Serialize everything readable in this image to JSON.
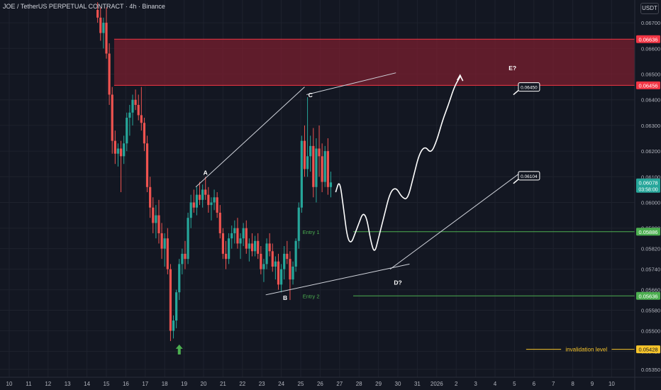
{
  "header": {
    "symbol_text": "JOE / TetherUS PERPETUAL CONTRACT · 4h · Binance"
  },
  "currency_label": "USDT",
  "colors": {
    "background": "#131722",
    "up_candle": "#26a69a",
    "down_candle": "#ef5350",
    "zone_fill": "#7a1f2f",
    "zone_border": "#f23645",
    "entry_line": "#4caf50",
    "invalidation_line": "#f7c52b",
    "last_price": "#26a69a",
    "arrow_up": "#4caf50"
  },
  "chart_data": {
    "type": "candlestick",
    "title": "JOE / TetherUS PERPETUAL CONTRACT · 4h · Binance",
    "y_axis_ticks": [
      "0.06700",
      "0.06600",
      "0.06500",
      "0.06400",
      "0.06300",
      "0.06200",
      "0.06100",
      "0.06000",
      "0.05900",
      "0.05820",
      "0.05740",
      "0.05660",
      "0.05580",
      "0.05500",
      "0.05420",
      "0.05350"
    ],
    "x_axis_ticks": [
      "10",
      "11",
      "12",
      "13",
      "14",
      "15",
      "16",
      "17",
      "18",
      "19",
      "20",
      "21",
      "22",
      "23",
      "24",
      "25",
      "26",
      "27",
      "28",
      "29",
      "30",
      "31",
      "2026",
      "2",
      "3",
      "4",
      "5",
      "6",
      "7",
      "8",
      "9",
      "10"
    ],
    "ylim": [
      0.0532,
      0.0675
    ],
    "grid": true,
    "price_labels": [
      {
        "text": "0.06636",
        "price": 0.06636,
        "style": "red"
      },
      {
        "text": "0.06456",
        "price": 0.06456,
        "style": "red"
      },
      {
        "text": "0.06078",
        "price": 0.06078,
        "style": "teal",
        "sub": "03:58:00"
      },
      {
        "text": "0.05886",
        "price": 0.05886,
        "style": "green"
      },
      {
        "text": "0.05636",
        "price": 0.05636,
        "style": "green"
      },
      {
        "text": "0.05428",
        "price": 0.05428,
        "style": "yellow"
      }
    ],
    "resistance_zone": {
      "top": 0.06636,
      "bottom": 0.06456
    },
    "entries": [
      {
        "label": "Entry 1",
        "price": 0.05886
      },
      {
        "label": "Entry 2",
        "price": 0.05636
      }
    ],
    "invalidation": {
      "label": "invalidation level",
      "price": 0.05428
    },
    "wave_labels": [
      {
        "label": "A",
        "day": 20.1,
        "price": 0.06108
      },
      {
        "label": "B",
        "day": 24.2,
        "price": 0.0562
      },
      {
        "label": "C",
        "day": 25.5,
        "price": 0.0641
      },
      {
        "label": "D?",
        "day": 30.0,
        "price": 0.0568
      },
      {
        "label": "E?",
        "day": 35.9,
        "price": 0.06515
      }
    ],
    "callouts": [
      {
        "text": "0.06450",
        "price": 0.0645
      },
      {
        "text": "0.06104",
        "price": 0.06104
      }
    ],
    "candles": [
      {
        "d": 14.55,
        "o": 0.0675,
        "h": 0.0678,
        "l": 0.067,
        "c": 0.0672
      },
      {
        "d": 14.7,
        "o": 0.0672,
        "h": 0.0676,
        "l": 0.0663,
        "c": 0.0666
      },
      {
        "d": 14.85,
        "o": 0.0666,
        "h": 0.0672,
        "l": 0.066,
        "c": 0.067
      },
      {
        "d": 15.0,
        "o": 0.067,
        "h": 0.0676,
        "l": 0.0656,
        "c": 0.0658
      },
      {
        "d": 15.15,
        "o": 0.0658,
        "h": 0.0662,
        "l": 0.0638,
        "c": 0.0642
      },
      {
        "d": 15.3,
        "o": 0.0642,
        "h": 0.0645,
        "l": 0.0619,
        "c": 0.0624
      },
      {
        "d": 15.45,
        "o": 0.0624,
        "h": 0.0628,
        "l": 0.0615,
        "c": 0.0619
      },
      {
        "d": 15.6,
        "o": 0.0619,
        "h": 0.0623,
        "l": 0.0614,
        "c": 0.0621
      },
      {
        "d": 15.75,
        "o": 0.0621,
        "h": 0.0624,
        "l": 0.0604,
        "c": 0.0618
      },
      {
        "d": 15.9,
        "o": 0.0618,
        "h": 0.0626,
        "l": 0.0615,
        "c": 0.0623
      },
      {
        "d": 16.05,
        "o": 0.0623,
        "h": 0.0635,
        "l": 0.062,
        "c": 0.0633
      },
      {
        "d": 16.2,
        "o": 0.0633,
        "h": 0.0638,
        "l": 0.0626,
        "c": 0.0635
      },
      {
        "d": 16.35,
        "o": 0.0635,
        "h": 0.0642,
        "l": 0.063,
        "c": 0.064
      },
      {
        "d": 16.5,
        "o": 0.064,
        "h": 0.0644,
        "l": 0.0636,
        "c": 0.0638
      },
      {
        "d": 16.65,
        "o": 0.0638,
        "h": 0.0642,
        "l": 0.0632,
        "c": 0.0634
      },
      {
        "d": 16.8,
        "o": 0.0634,
        "h": 0.0645,
        "l": 0.0628,
        "c": 0.0631
      },
      {
        "d": 16.95,
        "o": 0.0631,
        "h": 0.0633,
        "l": 0.062,
        "c": 0.0623
      },
      {
        "d": 17.1,
        "o": 0.0623,
        "h": 0.0626,
        "l": 0.0604,
        "c": 0.0606
      },
      {
        "d": 17.25,
        "o": 0.0606,
        "h": 0.061,
        "l": 0.0594,
        "c": 0.0598
      },
      {
        "d": 17.4,
        "o": 0.0598,
        "h": 0.0602,
        "l": 0.0588,
        "c": 0.0592
      },
      {
        "d": 17.55,
        "o": 0.0592,
        "h": 0.0599,
        "l": 0.0586,
        "c": 0.0595
      },
      {
        "d": 17.7,
        "o": 0.0595,
        "h": 0.0601,
        "l": 0.0584,
        "c": 0.0588
      },
      {
        "d": 17.85,
        "o": 0.0588,
        "h": 0.0592,
        "l": 0.0578,
        "c": 0.0582
      },
      {
        "d": 18.0,
        "o": 0.0582,
        "h": 0.0588,
        "l": 0.0575,
        "c": 0.0586
      },
      {
        "d": 18.15,
        "o": 0.0586,
        "h": 0.059,
        "l": 0.0572,
        "c": 0.0574
      },
      {
        "d": 18.3,
        "o": 0.0574,
        "h": 0.0576,
        "l": 0.0546,
        "c": 0.055
      },
      {
        "d": 18.45,
        "o": 0.055,
        "h": 0.0556,
        "l": 0.0547,
        "c": 0.0554
      },
      {
        "d": 18.6,
        "o": 0.0554,
        "h": 0.0566,
        "l": 0.0551,
        "c": 0.0565
      },
      {
        "d": 18.75,
        "o": 0.0565,
        "h": 0.0578,
        "l": 0.0562,
        "c": 0.0576
      },
      {
        "d": 18.9,
        "o": 0.0576,
        "h": 0.0582,
        "l": 0.0572,
        "c": 0.058
      },
      {
        "d": 19.05,
        "o": 0.058,
        "h": 0.0585,
        "l": 0.0574,
        "c": 0.0578
      },
      {
        "d": 19.2,
        "o": 0.0578,
        "h": 0.0596,
        "l": 0.0576,
        "c": 0.0594
      },
      {
        "d": 19.35,
        "o": 0.0594,
        "h": 0.0603,
        "l": 0.059,
        "c": 0.06
      },
      {
        "d": 19.5,
        "o": 0.06,
        "h": 0.0605,
        "l": 0.0596,
        "c": 0.0598
      },
      {
        "d": 19.65,
        "o": 0.0598,
        "h": 0.0606,
        "l": 0.0595,
        "c": 0.0603
      },
      {
        "d": 19.8,
        "o": 0.0603,
        "h": 0.0608,
        "l": 0.0599,
        "c": 0.0601
      },
      {
        "d": 19.95,
        "o": 0.0601,
        "h": 0.0607,
        "l": 0.0598,
        "c": 0.0605
      },
      {
        "d": 20.1,
        "o": 0.0605,
        "h": 0.061,
        "l": 0.0601,
        "c": 0.0603
      },
      {
        "d": 20.25,
        "o": 0.0603,
        "h": 0.0606,
        "l": 0.0596,
        "c": 0.0599
      },
      {
        "d": 20.4,
        "o": 0.0599,
        "h": 0.0602,
        "l": 0.0593,
        "c": 0.06
      },
      {
        "d": 20.55,
        "o": 0.06,
        "h": 0.0605,
        "l": 0.0597,
        "c": 0.0602
      },
      {
        "d": 20.7,
        "o": 0.0602,
        "h": 0.0604,
        "l": 0.0594,
        "c": 0.0596
      },
      {
        "d": 20.85,
        "o": 0.0596,
        "h": 0.0599,
        "l": 0.0586,
        "c": 0.0588
      },
      {
        "d": 21.0,
        "o": 0.0588,
        "h": 0.059,
        "l": 0.0578,
        "c": 0.058
      },
      {
        "d": 21.15,
        "o": 0.058,
        "h": 0.0585,
        "l": 0.0574,
        "c": 0.0578
      },
      {
        "d": 21.3,
        "o": 0.0578,
        "h": 0.0588,
        "l": 0.0576,
        "c": 0.0586
      },
      {
        "d": 21.45,
        "o": 0.0586,
        "h": 0.0591,
        "l": 0.0582,
        "c": 0.0588
      },
      {
        "d": 21.6,
        "o": 0.0588,
        "h": 0.0593,
        "l": 0.0584,
        "c": 0.059
      },
      {
        "d": 21.75,
        "o": 0.059,
        "h": 0.0594,
        "l": 0.0582,
        "c": 0.0584
      },
      {
        "d": 21.9,
        "o": 0.0584,
        "h": 0.0588,
        "l": 0.0578,
        "c": 0.0586
      },
      {
        "d": 22.05,
        "o": 0.0586,
        "h": 0.0592,
        "l": 0.0583,
        "c": 0.059
      },
      {
        "d": 22.2,
        "o": 0.059,
        "h": 0.0593,
        "l": 0.058,
        "c": 0.0582
      },
      {
        "d": 22.35,
        "o": 0.0582,
        "h": 0.0586,
        "l": 0.0577,
        "c": 0.0584
      },
      {
        "d": 22.5,
        "o": 0.0584,
        "h": 0.0588,
        "l": 0.0579,
        "c": 0.0581
      },
      {
        "d": 22.65,
        "o": 0.0581,
        "h": 0.0587,
        "l": 0.0579,
        "c": 0.0585
      },
      {
        "d": 22.8,
        "o": 0.0585,
        "h": 0.0588,
        "l": 0.0578,
        "c": 0.058
      },
      {
        "d": 22.95,
        "o": 0.058,
        "h": 0.0583,
        "l": 0.0572,
        "c": 0.0574
      },
      {
        "d": 23.1,
        "o": 0.0574,
        "h": 0.0578,
        "l": 0.0569,
        "c": 0.0576
      },
      {
        "d": 23.25,
        "o": 0.0576,
        "h": 0.0586,
        "l": 0.0574,
        "c": 0.0584
      },
      {
        "d": 23.4,
        "o": 0.0584,
        "h": 0.0588,
        "l": 0.0579,
        "c": 0.0581
      },
      {
        "d": 23.55,
        "o": 0.0581,
        "h": 0.0584,
        "l": 0.0573,
        "c": 0.0575
      },
      {
        "d": 23.7,
        "o": 0.0575,
        "h": 0.0579,
        "l": 0.057,
        "c": 0.0577
      },
      {
        "d": 23.85,
        "o": 0.0577,
        "h": 0.058,
        "l": 0.0566,
        "c": 0.0568
      },
      {
        "d": 24.0,
        "o": 0.0568,
        "h": 0.0576,
        "l": 0.0565,
        "c": 0.0574
      },
      {
        "d": 24.15,
        "o": 0.0574,
        "h": 0.0583,
        "l": 0.057,
        "c": 0.058
      },
      {
        "d": 24.3,
        "o": 0.058,
        "h": 0.0585,
        "l": 0.0576,
        "c": 0.0578
      },
      {
        "d": 24.45,
        "o": 0.0578,
        "h": 0.0581,
        "l": 0.0562,
        "c": 0.057
      },
      {
        "d": 24.6,
        "o": 0.057,
        "h": 0.0577,
        "l": 0.0568,
        "c": 0.0575
      },
      {
        "d": 24.75,
        "o": 0.0575,
        "h": 0.0586,
        "l": 0.0573,
        "c": 0.0585
      },
      {
        "d": 24.9,
        "o": 0.0585,
        "h": 0.06,
        "l": 0.0582,
        "c": 0.0598
      },
      {
        "d": 25.05,
        "o": 0.0598,
        "h": 0.0626,
        "l": 0.0596,
        "c": 0.0624
      },
      {
        "d": 25.2,
        "o": 0.0624,
        "h": 0.063,
        "l": 0.061,
        "c": 0.0613
      },
      {
        "d": 25.35,
        "o": 0.0613,
        "h": 0.0641,
        "l": 0.061,
        "c": 0.0618
      },
      {
        "d": 25.5,
        "o": 0.0618,
        "h": 0.0626,
        "l": 0.0612,
        "c": 0.0622
      },
      {
        "d": 25.65,
        "o": 0.0622,
        "h": 0.0629,
        "l": 0.0602,
        "c": 0.0606
      },
      {
        "d": 25.8,
        "o": 0.0606,
        "h": 0.0625,
        "l": 0.06,
        "c": 0.0621
      },
      {
        "d": 25.95,
        "o": 0.0621,
        "h": 0.063,
        "l": 0.061,
        "c": 0.0618
      },
      {
        "d": 26.1,
        "o": 0.0618,
        "h": 0.0623,
        "l": 0.0604,
        "c": 0.0608
      },
      {
        "d": 26.25,
        "o": 0.0608,
        "h": 0.0622,
        "l": 0.0606,
        "c": 0.062
      },
      {
        "d": 26.4,
        "o": 0.062,
        "h": 0.0625,
        "l": 0.0603,
        "c": 0.0606
      },
      {
        "d": 26.55,
        "o": 0.0606,
        "h": 0.0612,
        "l": 0.0602,
        "c": 0.06078
      }
    ],
    "projection_path": [
      [
        26.8,
        0.0604
      ],
      [
        27.0,
        0.0609
      ],
      [
        27.2,
        0.0598
      ],
      [
        27.4,
        0.0586
      ],
      [
        27.6,
        0.0584
      ],
      [
        27.8,
        0.0588
      ],
      [
        28.0,
        0.0592
      ],
      [
        28.2,
        0.0596
      ],
      [
        28.4,
        0.0594
      ],
      [
        28.6,
        0.0585
      ],
      [
        28.8,
        0.058
      ],
      [
        29.0,
        0.0586
      ],
      [
        29.3,
        0.0595
      ],
      [
        29.6,
        0.0604
      ],
      [
        29.9,
        0.0606
      ],
      [
        30.2,
        0.0602
      ],
      [
        30.5,
        0.0601
      ],
      [
        30.8,
        0.061
      ],
      [
        31.1,
        0.0619
      ],
      [
        31.4,
        0.0622
      ],
      [
        31.7,
        0.0619
      ],
      [
        32.0,
        0.0624
      ],
      [
        32.3,
        0.0632
      ],
      [
        32.6,
        0.0638
      ],
      [
        32.9,
        0.0645
      ],
      [
        33.2,
        0.0649
      ]
    ],
    "trendlines": [
      {
        "from": [
          19.6,
          0.0606
        ],
        "to": [
          25.2,
          0.0645
        ],
        "name": "A-C"
      },
      {
        "from": [
          23.2,
          0.0564
        ],
        "to": [
          30.6,
          0.0576
        ],
        "name": "B-D"
      },
      {
        "from": [
          25.3,
          0.0642
        ],
        "to": [
          29.9,
          0.06505
        ],
        "name": "C-E"
      },
      {
        "from": [
          29.6,
          0.0574
        ],
        "to": [
          36.2,
          0.0611
        ],
        "name": "D-target"
      }
    ],
    "entry_arrow": {
      "day": 18.75,
      "price": 0.0543
    }
  }
}
